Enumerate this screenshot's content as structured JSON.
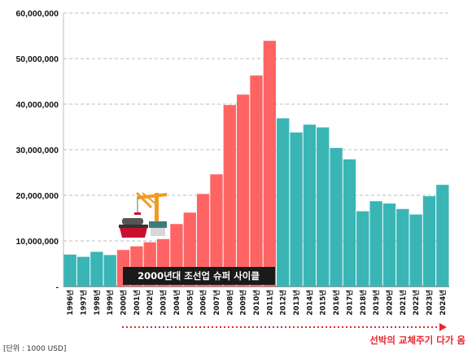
{
  "chart_data": {
    "type": "bar",
    "categories": [
      "1996년",
      "1997년",
      "1998년",
      "1999년",
      "2000년",
      "2001년",
      "2002년",
      "2003년",
      "2004년",
      "2005년",
      "2006년",
      "2007년",
      "2008년",
      "2009년",
      "2010년",
      "2011년",
      "2012년",
      "2013년",
      "2014년",
      "2015년",
      "2016년",
      "2017년",
      "2018년",
      "2019년",
      "2020년",
      "2021년",
      "2022년",
      "2023년",
      "2024년"
    ],
    "values": [
      7000000,
      6500000,
      7600000,
      6900000,
      8000000,
      8800000,
      9700000,
      10400000,
      13700000,
      16200000,
      20300000,
      24600000,
      39800000,
      42100000,
      46300000,
      53900000,
      36900000,
      33800000,
      35500000,
      34900000,
      30400000,
      27900000,
      16500000,
      18700000,
      18200000,
      17000000,
      15800000,
      19800000,
      22300000
    ],
    "highlight_range": [
      4,
      15
    ],
    "colors": {
      "default": "#3ab5b5",
      "highlight": "#ff6464",
      "annotation_bg": "#1a1a1a",
      "cycle": "#e8262b"
    },
    "ylim": [
      0,
      60000000
    ],
    "yticks": [
      0,
      10000000,
      20000000,
      30000000,
      40000000,
      50000000,
      60000000
    ],
    "ytick_labels": [
      "-",
      "10,000,000",
      "20,000,000",
      "30,000,000",
      "40,000,000",
      "50,000,000",
      "60,000,000"
    ],
    "grid": true,
    "annotation": "2000년대 조선업 슈퍼 사이클",
    "cycle_note": "선박의 교체주기 다가 옴",
    "unit_note": "[단위 : 1000 USD]",
    "icon": "ship-crane-icon"
  }
}
